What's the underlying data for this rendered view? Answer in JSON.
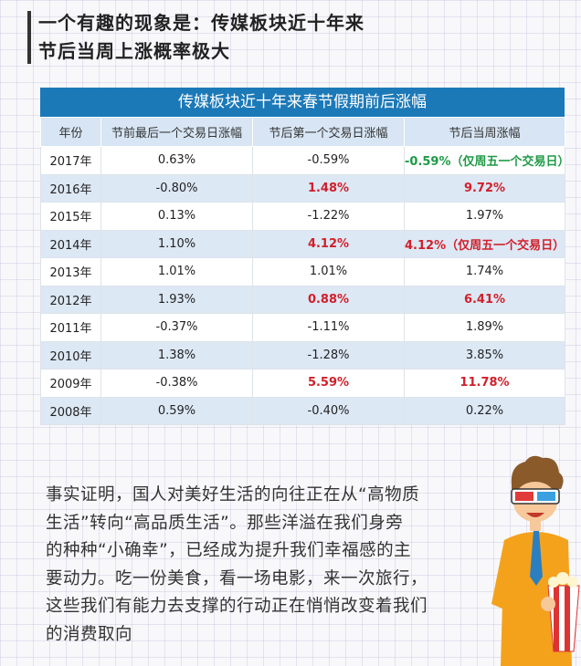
{
  "headline": {
    "line1": "一个有趣的现象是：传媒板块近十年来",
    "line2": "节后当周上涨概率极大"
  },
  "table": {
    "title": "传媒板块近十年来春节假期前后涨幅",
    "headers": [
      "年份",
      "节前最后一个交易日涨幅",
      "节后第一个交易日涨幅",
      "节后当周涨幅"
    ],
    "rows": [
      {
        "year": "2017年",
        "pre": "0.63%",
        "post_first": "-0.59%",
        "post_week": "-0.59%（仅周五一个交易日）",
        "post_first_style": "",
        "post_week_style": "green"
      },
      {
        "year": "2016年",
        "pre": "-0.80%",
        "post_first": "1.48%",
        "post_week": "9.72%",
        "post_first_style": "red",
        "post_week_style": "red"
      },
      {
        "year": "2015年",
        "pre": "0.13%",
        "post_first": "-1.22%",
        "post_week": "1.97%",
        "post_first_style": "",
        "post_week_style": ""
      },
      {
        "year": "2014年",
        "pre": "1.10%",
        "post_first": "4.12%",
        "post_week": "4.12%（仅周五一个交易日）",
        "post_first_style": "red",
        "post_week_style": "red"
      },
      {
        "year": "2013年",
        "pre": "1.01%",
        "post_first": "1.01%",
        "post_week": "1.74%",
        "post_first_style": "",
        "post_week_style": ""
      },
      {
        "year": "2012年",
        "pre": "1.93%",
        "post_first": "0.88%",
        "post_week": "6.41%",
        "post_first_style": "red",
        "post_week_style": "red"
      },
      {
        "year": "2011年",
        "pre": "-0.37%",
        "post_first": "-1.11%",
        "post_week": "1.89%",
        "post_first_style": "",
        "post_week_style": ""
      },
      {
        "year": "2010年",
        "pre": "1.38%",
        "post_first": "-1.28%",
        "post_week": "3.85%",
        "post_first_style": "",
        "post_week_style": ""
      },
      {
        "year": "2009年",
        "pre": "-0.38%",
        "post_first": "5.59%",
        "post_week": "11.78%",
        "post_first_style": "red",
        "post_week_style": "red"
      },
      {
        "year": "2008年",
        "pre": "0.59%",
        "post_first": "-0.40%",
        "post_week": "0.22%",
        "post_first_style": "",
        "post_week_style": ""
      }
    ]
  },
  "paragraph": {
    "lines": [
      "事实证明，国人对美好生活的向往正在从“高物质",
      "生活”转向“高品质生活”。那些洋溢在我们身旁",
      "的种种“小确幸”，已经成为提升我们幸福感的主",
      "要动力。吃一份美食，看一场电影，来一次旅行，",
      "这些我们有能力去支撑的行动正在悄悄改变着我们",
      "的消费取向"
    ]
  },
  "colors": {
    "header_blue": "#1c79b8",
    "up_red": "#d0202a",
    "down_green": "#1f9a45"
  },
  "mascot": {
    "icon": "cartoon-man-3d-glasses-popcorn"
  }
}
